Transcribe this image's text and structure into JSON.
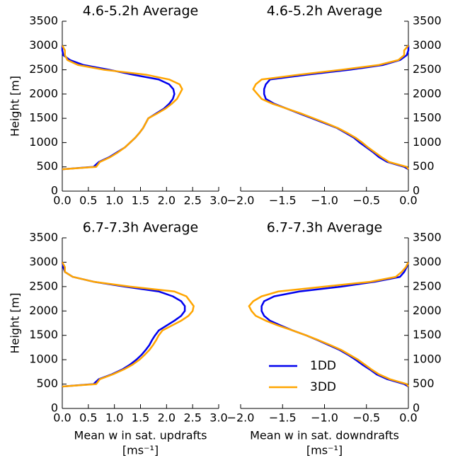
{
  "chart_data": [
    {
      "type": "line",
      "title": "4.6-5.2h Average",
      "ylabel": "Height [m]",
      "yaxis_side": "left",
      "xlim": [
        0,
        3
      ],
      "xticks": [
        {
          "value": 0,
          "label": "0.0"
        },
        0.5,
        {
          "value": 1,
          "label": "1.0"
        },
        1.5,
        {
          "value": 2,
          "label": "2.0"
        },
        2.5,
        {
          "value": 3,
          "label": "3.0"
        }
      ],
      "ylim": [
        0,
        3500
      ],
      "yticks": [
        0,
        500,
        1000,
        1500,
        2000,
        2500,
        3000,
        3500
      ],
      "y": [
        450,
        500,
        600,
        700,
        800,
        900,
        1000,
        1100,
        1200,
        1300,
        1400,
        1500,
        1600,
        1700,
        1800,
        1900,
        2000,
        2100,
        2200,
        2300,
        2400,
        2500,
        2600,
        2700,
        2800,
        2900,
        3000
      ],
      "series": [
        {
          "name": "1DD",
          "color": "#0000ee",
          "values": [
            0,
            0.6,
            0.7,
            0.9,
            1.05,
            1.2,
            1.3,
            1.4,
            1.48,
            1.55,
            1.6,
            1.65,
            1.8,
            1.95,
            2.05,
            2.12,
            2.15,
            2.13,
            2.05,
            1.85,
            1.35,
            0.9,
            0.4,
            0.15,
            0.02,
            0,
            0
          ]
        },
        {
          "name": "3DD",
          "color": "#ffa500",
          "values": [
            0,
            0.65,
            0.72,
            0.92,
            1.07,
            1.2,
            1.3,
            1.4,
            1.48,
            1.55,
            1.6,
            1.65,
            1.82,
            1.98,
            2.1,
            2.2,
            2.25,
            2.3,
            2.25,
            2.05,
            1.6,
            0.8,
            0.3,
            0.1,
            0.05,
            0.05,
            0
          ]
        }
      ]
    },
    {
      "type": "line",
      "title": "4.6-5.2h Average",
      "yaxis_side": "right",
      "xlim": [
        -2,
        0
      ],
      "xticks": [
        {
          "value": -2,
          "label": "−2.0"
        },
        {
          "value": -1.5,
          "label": "−1.5"
        },
        {
          "value": -1,
          "label": "−1.0"
        },
        {
          "value": -0.5,
          "label": "−0.5"
        },
        {
          "value": 0,
          "label": "0.0"
        }
      ],
      "ylim": [
        0,
        3500
      ],
      "yticks": [
        0,
        500,
        1000,
        1500,
        2000,
        2500,
        3000,
        3500
      ],
      "y": [
        450,
        500,
        600,
        700,
        800,
        900,
        1000,
        1100,
        1200,
        1300,
        1400,
        1500,
        1600,
        1700,
        1800,
        1900,
        2000,
        2100,
        2200,
        2300,
        2400,
        2500,
        2600,
        2700,
        2800,
        2900,
        3000
      ],
      "series": [
        {
          "name": "1DD",
          "color": "#0000ee",
          "values": [
            0,
            -0.05,
            -0.25,
            -0.35,
            -0.42,
            -0.5,
            -0.58,
            -0.65,
            -0.75,
            -0.85,
            -1.0,
            -1.15,
            -1.3,
            -1.45,
            -1.6,
            -1.7,
            -1.72,
            -1.72,
            -1.7,
            -1.65,
            -1.2,
            -0.7,
            -0.3,
            -0.1,
            -0.02,
            0,
            0
          ]
        },
        {
          "name": "3DD",
          "color": "#ffa500",
          "values": [
            0,
            -0.02,
            -0.23,
            -0.32,
            -0.4,
            -0.48,
            -0.55,
            -0.63,
            -0.73,
            -0.84,
            -0.98,
            -1.13,
            -1.28,
            -1.45,
            -1.62,
            -1.75,
            -1.8,
            -1.85,
            -1.82,
            -1.75,
            -1.3,
            -0.8,
            -0.35,
            -0.12,
            -0.05,
            -0.05,
            0
          ]
        }
      ]
    },
    {
      "type": "line",
      "title": "6.7-7.3h Average",
      "ylabel": "Height [m]",
      "yaxis_side": "left",
      "xlabel": [
        "Mean w in sat. updrafts",
        "[ms⁻¹]"
      ],
      "xlim": [
        0,
        3
      ],
      "xticks": [
        {
          "value": 0,
          "label": "0.0"
        },
        0.5,
        {
          "value": 1,
          "label": "1.0"
        },
        1.5,
        {
          "value": 2,
          "label": "2.0"
        },
        2.5,
        {
          "value": 3,
          "label": "3.0"
        }
      ],
      "ylim": [
        0,
        3500
      ],
      "yticks": [
        0,
        500,
        1000,
        1500,
        2000,
        2500,
        3000,
        3500
      ],
      "y": [
        450,
        500,
        600,
        700,
        800,
        900,
        1000,
        1100,
        1200,
        1300,
        1400,
        1500,
        1600,
        1700,
        1800,
        1900,
        2000,
        2100,
        2200,
        2300,
        2400,
        2500,
        2600,
        2700,
        2800,
        2900,
        3000
      ],
      "series": [
        {
          "name": "1DD",
          "color": "#0000ee",
          "values": [
            0,
            0.6,
            0.7,
            0.95,
            1.15,
            1.3,
            1.42,
            1.52,
            1.6,
            1.67,
            1.72,
            1.78,
            1.85,
            2.0,
            2.15,
            2.28,
            2.35,
            2.35,
            2.28,
            2.12,
            1.85,
            1.2,
            0.6,
            0.2,
            0.05,
            0.02,
            0
          ]
        },
        {
          "name": "3DD",
          "color": "#ffa500",
          "values": [
            0,
            0.65,
            0.72,
            0.97,
            1.18,
            1.35,
            1.48,
            1.58,
            1.67,
            1.74,
            1.8,
            1.85,
            1.92,
            2.1,
            2.28,
            2.42,
            2.5,
            2.52,
            2.45,
            2.38,
            2.15,
            1.3,
            0.6,
            0.2,
            0.05,
            0.05,
            0
          ]
        }
      ]
    },
    {
      "type": "line",
      "title": "6.7-7.3h Average",
      "yaxis_side": "right",
      "legend": "lower left",
      "xlabel": [
        "Mean w in sat. downdrafts",
        "[ms⁻¹]"
      ],
      "xlim": [
        -2,
        0
      ],
      "xticks": [
        {
          "value": -2,
          "label": "−2.0"
        },
        {
          "value": -1.5,
          "label": "−1.5"
        },
        {
          "value": -1,
          "label": "−1.0"
        },
        {
          "value": -0.5,
          "label": "−0.5"
        },
        {
          "value": 0,
          "label": "0.0"
        }
      ],
      "ylim": [
        0,
        3500
      ],
      "yticks": [
        0,
        500,
        1000,
        1500,
        2000,
        2500,
        3000,
        3500
      ],
      "y": [
        450,
        500,
        600,
        700,
        800,
        900,
        1000,
        1100,
        1200,
        1300,
        1400,
        1500,
        1600,
        1700,
        1800,
        1900,
        2000,
        2100,
        2200,
        2300,
        2400,
        2500,
        2600,
        2700,
        2800,
        2900,
        3000
      ],
      "series": [
        {
          "name": "1DD",
          "color": "#0000ee",
          "values": [
            0,
            -0.05,
            -0.25,
            -0.38,
            -0.46,
            -0.55,
            -0.63,
            -0.72,
            -0.82,
            -0.95,
            -1.08,
            -1.22,
            -1.38,
            -1.52,
            -1.65,
            -1.72,
            -1.75,
            -1.75,
            -1.72,
            -1.6,
            -1.3,
            -0.8,
            -0.4,
            -0.1,
            -0.05,
            -0.02,
            0
          ]
        },
        {
          "name": "3DD",
          "color": "#ffa500",
          "values": [
            0,
            -0.02,
            -0.22,
            -0.35,
            -0.44,
            -0.52,
            -0.6,
            -0.7,
            -0.8,
            -0.93,
            -1.07,
            -1.22,
            -1.38,
            -1.55,
            -1.7,
            -1.82,
            -1.87,
            -1.9,
            -1.85,
            -1.75,
            -1.55,
            -1.0,
            -0.45,
            -0.15,
            -0.08,
            -0.03,
            0
          ]
        }
      ]
    }
  ]
}
